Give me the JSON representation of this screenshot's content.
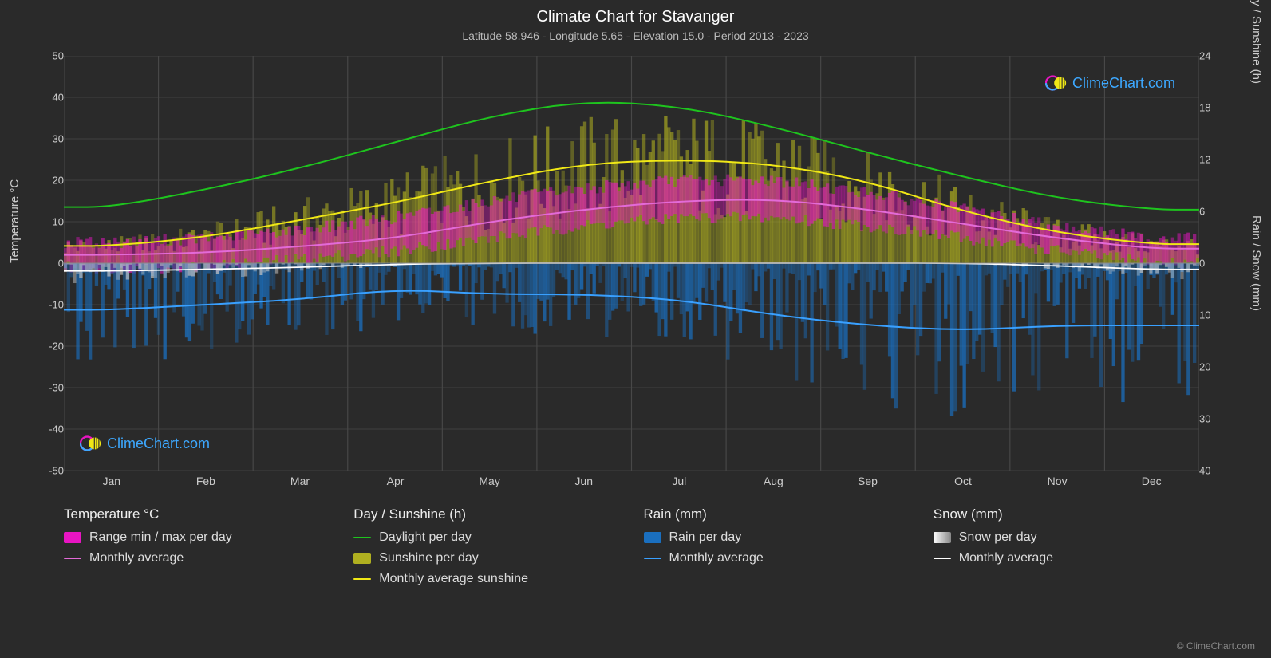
{
  "title": "Climate Chart for Stavanger",
  "subtitle": "Latitude 58.946 - Longitude 5.65 - Elevation 15.0 - Period 2013 - 2023",
  "brand": "ClimeChart.com",
  "credit": "© ClimeChart.com",
  "axes": {
    "left_label": "Temperature °C",
    "right_top_label": "Day / Sunshine (h)",
    "right_bottom_label": "Rain / Snow (mm)",
    "temp_ticks": [
      50,
      40,
      30,
      20,
      10,
      0,
      -10,
      -20,
      -30,
      -40,
      -50
    ],
    "temp_range": [
      -50,
      50
    ],
    "day_ticks": [
      24,
      18,
      12,
      6,
      0
    ],
    "day_range": [
      0,
      24
    ],
    "rain_ticks": [
      0,
      10,
      20,
      30,
      40
    ],
    "rain_range": [
      0,
      40
    ],
    "months": [
      "Jan",
      "Feb",
      "Mar",
      "Apr",
      "May",
      "Jun",
      "Jul",
      "Aug",
      "Sep",
      "Oct",
      "Nov",
      "Dec"
    ]
  },
  "colors": {
    "bg": "#2a2a2a",
    "grid": "#555555",
    "title": "#ffffff",
    "text": "#cccccc",
    "temp_range_fill": "#e815c3",
    "temp_avg_line": "#e36ad8",
    "daylight_line": "#1ec41e",
    "sunshine_fill": "#b0b020",
    "sunshine_line": "#f0e816",
    "rain_fill": "#1a6fbf",
    "rain_line": "#39a0ff",
    "snow_fill": "#c0c0c0",
    "snow_line": "#ffffff",
    "brand_text": "#3da8ff"
  },
  "series": {
    "months_x": [
      0.042,
      0.125,
      0.208,
      0.292,
      0.375,
      0.458,
      0.542,
      0.625,
      0.708,
      0.792,
      0.875,
      0.958
    ],
    "daylight_h": [
      6.5,
      8.5,
      11,
      14,
      17,
      18.8,
      18.2,
      15.8,
      12.8,
      10,
      7.5,
      6.2
    ],
    "sunshine_avg_h": [
      2,
      3,
      5,
      7,
      9.5,
      11.5,
      12,
      11.5,
      9.5,
      6,
      3.5,
      2.2
    ],
    "temp_avg_c": [
      2,
      2.5,
      4,
      6,
      10,
      13,
      15,
      15.5,
      13,
      9.5,
      6,
      3.5
    ],
    "temp_min_c": [
      -1,
      -1,
      1,
      3,
      6,
      9,
      11,
      11,
      9,
      6,
      3,
      0
    ],
    "temp_max_c": [
      5,
      6,
      8,
      11,
      15,
      18,
      20,
      20,
      17,
      13,
      9,
      6
    ],
    "rain_avg_mm": [
      9,
      8,
      7,
      5,
      6,
      6,
      7,
      10,
      12,
      13,
      12,
      12
    ],
    "snow_avg_mm": [
      1.5,
      1.2,
      0.8,
      0.2,
      0,
      0,
      0,
      0,
      0,
      0,
      0.5,
      1.2
    ]
  },
  "legend": {
    "temp_title": "Temperature °C",
    "temp_item1": "Range min / max per day",
    "temp_item2": "Monthly average",
    "day_title": "Day / Sunshine (h)",
    "day_item1": "Daylight per day",
    "day_item2": "Sunshine per day",
    "day_item3": "Monthly average sunshine",
    "rain_title": "Rain (mm)",
    "rain_item1": "Rain per day",
    "rain_item2": "Monthly average",
    "snow_title": "Snow (mm)",
    "snow_item1": "Snow per day",
    "snow_item2": "Monthly average"
  }
}
